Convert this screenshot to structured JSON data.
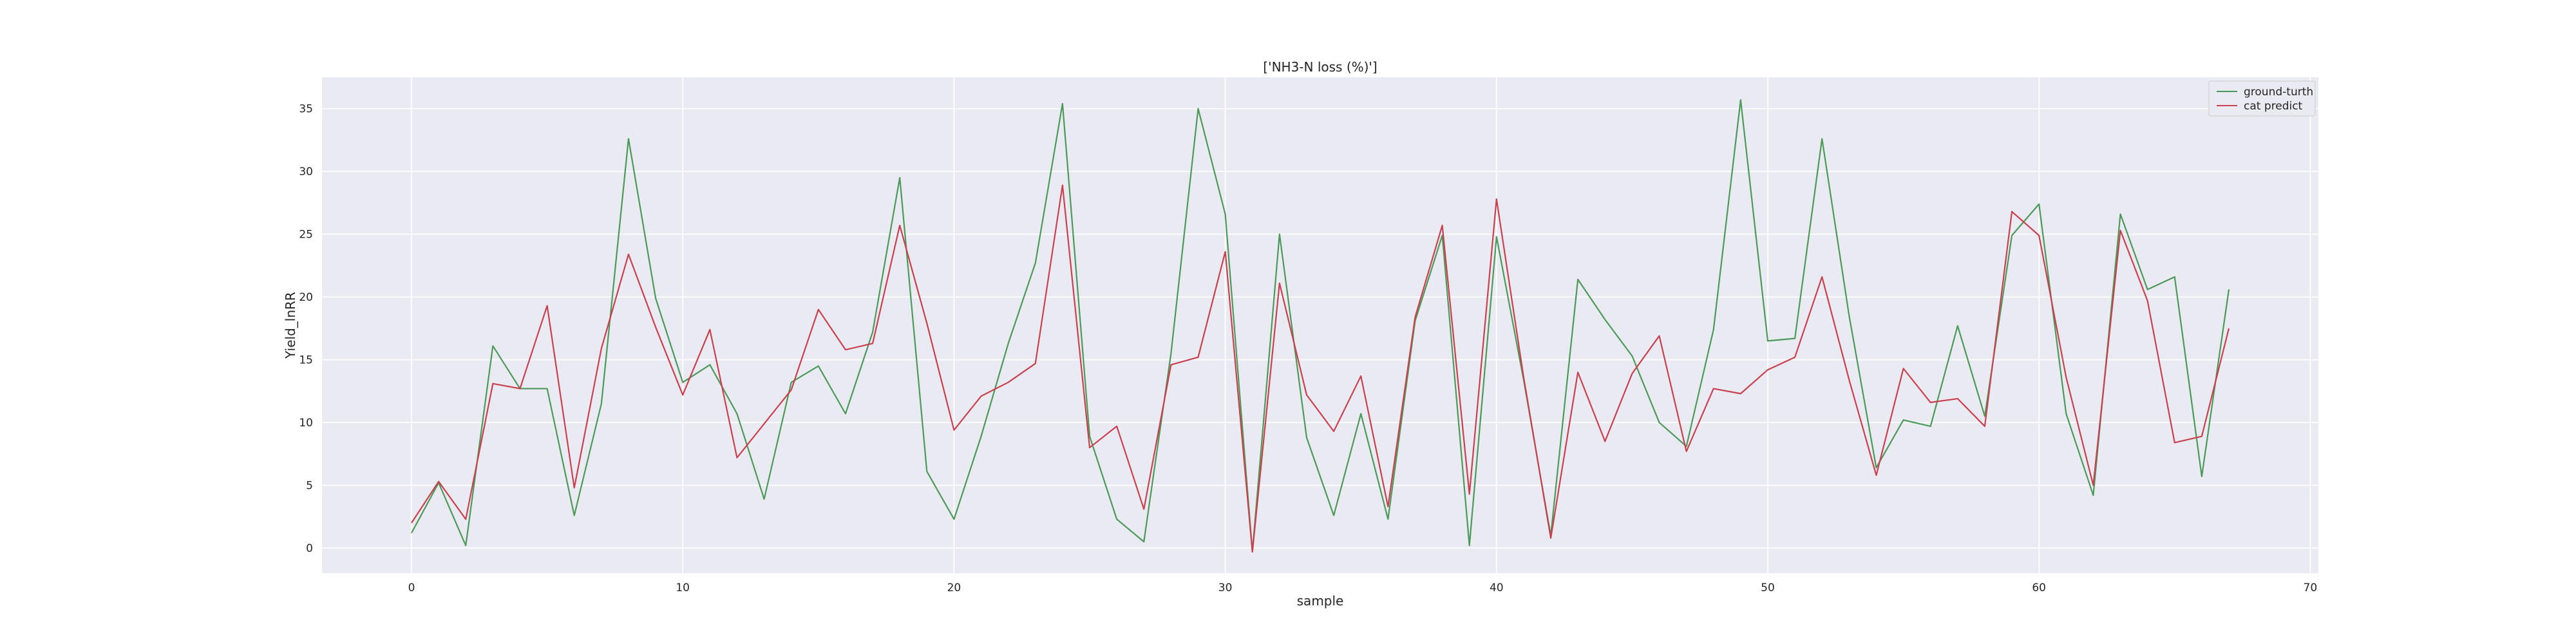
{
  "chart_data": {
    "type": "line",
    "title": "['NH3-N loss (%)']",
    "xlabel": "sample",
    "ylabel": "Yield_lnRR",
    "xlim": [
      -3.3,
      70.3
    ],
    "ylim": [
      -2,
      37.5
    ],
    "xticks": [
      0,
      10,
      20,
      30,
      40,
      50,
      60,
      70
    ],
    "yticks": [
      0,
      5,
      10,
      15,
      20,
      25,
      30,
      35
    ],
    "grid": true,
    "legend_position": "top-right",
    "x": [
      0,
      1,
      2,
      3,
      4,
      5,
      6,
      7,
      8,
      9,
      10,
      11,
      12,
      13,
      14,
      15,
      16,
      17,
      18,
      19,
      20,
      21,
      22,
      23,
      24,
      25,
      26,
      27,
      28,
      29,
      30,
      31,
      32,
      33,
      34,
      35,
      36,
      37,
      38,
      39,
      40,
      41,
      42,
      43,
      44,
      45,
      46,
      47,
      48,
      49,
      50,
      51,
      52,
      53,
      54,
      55,
      56,
      57,
      58,
      59,
      60,
      61,
      62,
      63,
      64,
      65,
      66,
      67
    ],
    "series": [
      {
        "name": "ground-turth",
        "color": "#4c9a5a",
        "values": [
          1.2,
          5.2,
          0.2,
          16.1,
          12.7,
          12.7,
          2.6,
          11.5,
          32.6,
          19.9,
          13.2,
          14.6,
          10.7,
          3.9,
          13.2,
          14.5,
          10.7,
          17.2,
          29.5,
          6.1,
          2.3,
          8.9,
          16.3,
          22.7,
          35.4,
          8.9,
          2.3,
          0.5,
          15.5,
          35.0,
          26.6,
          -0.3,
          25.0,
          8.8,
          2.6,
          10.7,
          2.3,
          18.1,
          24.9,
          0.2,
          24.8,
          13.4,
          1.0,
          21.4,
          18.2,
          15.3,
          10.0,
          8.1,
          17.4,
          35.7,
          16.5,
          16.7,
          32.6,
          18.5,
          6.4,
          10.2,
          9.7,
          17.7,
          10.5,
          24.9,
          27.4,
          10.7,
          4.2,
          26.6,
          20.6,
          21.6,
          5.7,
          20.6
        ]
      },
      {
        "name": "cat predict",
        "color": "#c9404f",
        "values": [
          2.0,
          5.3,
          2.3,
          13.1,
          12.7,
          19.3,
          4.8,
          15.9,
          23.4,
          17.6,
          12.2,
          17.4,
          7.2,
          9.9,
          12.6,
          19.0,
          15.8,
          16.3,
          25.7,
          17.9,
          9.4,
          12.1,
          13.2,
          14.7,
          28.9,
          8.0,
          9.7,
          3.1,
          14.6,
          15.2,
          23.6,
          -0.3,
          21.1,
          12.2,
          9.3,
          13.7,
          3.3,
          18.4,
          25.7,
          4.3,
          27.8,
          13.6,
          0.8,
          14.0,
          8.5,
          13.9,
          16.9,
          7.7,
          12.7,
          12.3,
          14.2,
          15.2,
          21.6,
          13.4,
          5.8,
          14.3,
          11.6,
          11.9,
          9.7,
          26.8,
          24.9,
          13.6,
          5.0,
          25.3,
          19.7,
          8.4,
          8.9,
          17.5
        ]
      }
    ]
  }
}
